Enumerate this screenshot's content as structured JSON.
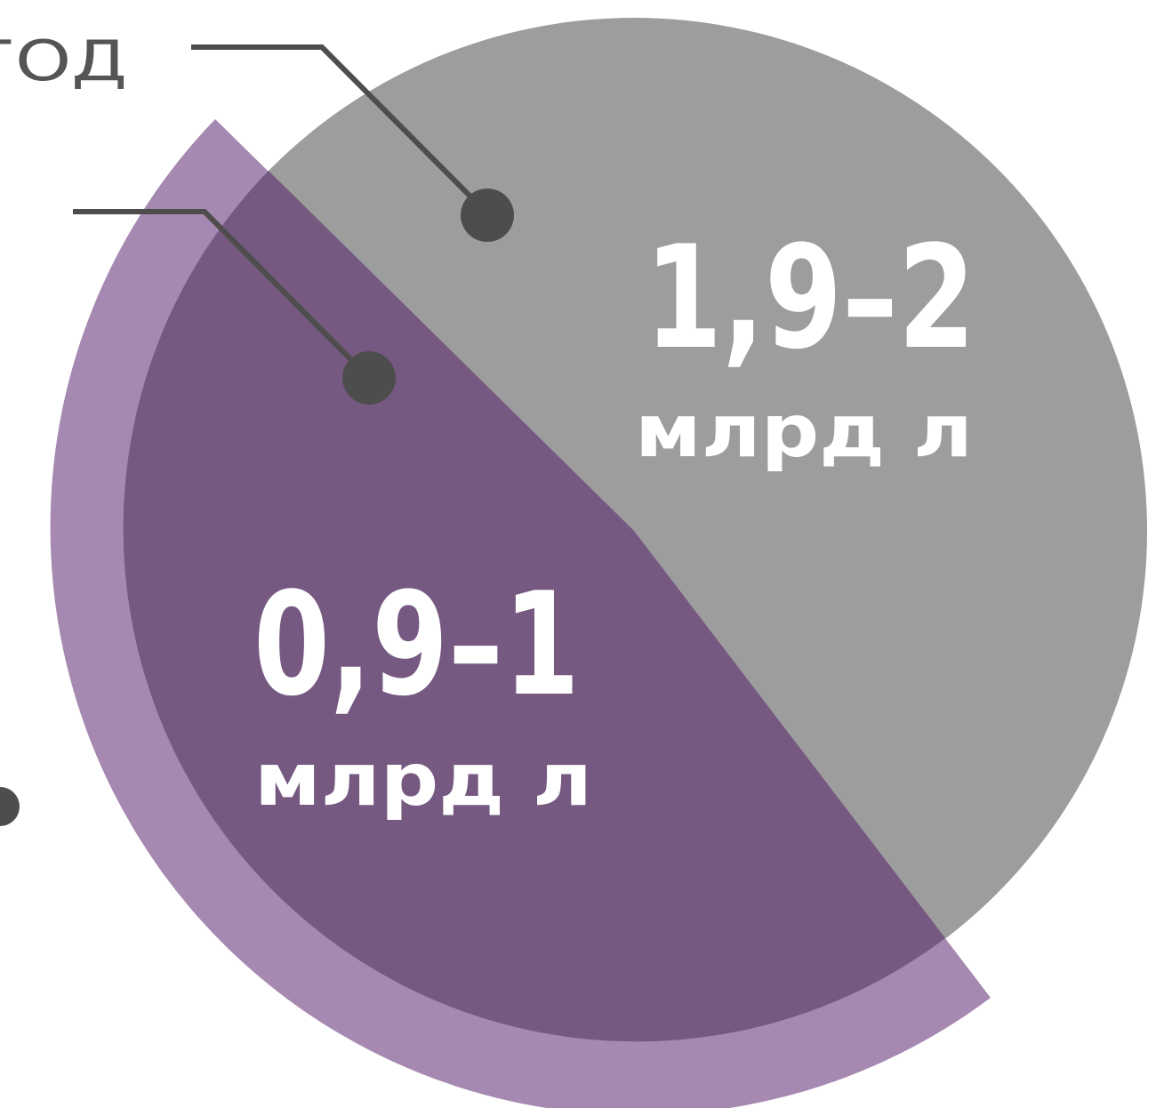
{
  "labels": {
    "year": "ГОД"
  },
  "segments": [
    {
      "value": "1,9–2",
      "unit": "млрд л"
    },
    {
      "value": "0,9–1",
      "unit": "млрд л"
    }
  ]
}
